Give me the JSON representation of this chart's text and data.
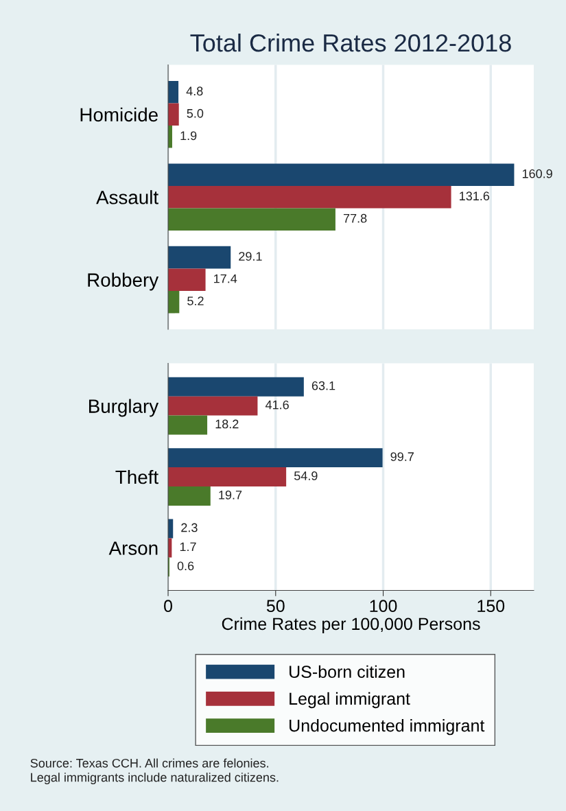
{
  "chart_data": [
    {
      "type": "bar",
      "orientation": "horizontal",
      "title": "Total Crime Rates 2012-2018",
      "categories": [
        "Homicide",
        "Assault",
        "Robbery"
      ],
      "series": [
        {
          "color": "#1a476f",
          "values": [
            4.8,
            160.9,
            29.1
          ],
          "value_labels": [
            "4.8",
            "160.9",
            "29.1"
          ]
        },
        {
          "color": "#a6313b",
          "values": [
            5.0,
            131.6,
            17.4
          ],
          "value_labels": [
            "5.0",
            "131.6",
            "17.4"
          ]
        },
        {
          "color": "#4a7a2a",
          "values": [
            1.9,
            77.8,
            5.2
          ],
          "value_labels": [
            "1.9",
            "77.8",
            "5.2"
          ]
        }
      ],
      "xlim": [
        0,
        170
      ],
      "xticks": [
        0,
        50,
        100,
        150
      ],
      "tick_labels": "y",
      "grid": "x",
      "legend": false
    },
    {
      "type": "bar",
      "orientation": "horizontal",
      "xlabel": "Crime Rates per 100,000 Persons",
      "categories": [
        "Burglary",
        "Theft",
        "Arson"
      ],
      "series": [
        {
          "name": "US-born citizen",
          "color": "#1a476f",
          "values": [
            63.1,
            99.7,
            2.3
          ],
          "value_labels": [
            "63.1",
            "99.7",
            "2.3"
          ]
        },
        {
          "name": "Legal immigrant",
          "color": "#a6313b",
          "values": [
            41.6,
            54.9,
            1.7
          ],
          "value_labels": [
            "41.6",
            "54.9",
            "1.7"
          ]
        },
        {
          "name": "Undocumented immigrant",
          "color": "#4a7a2a",
          "values": [
            18.2,
            19.7,
            0.6
          ],
          "value_labels": [
            "18.2",
            "19.7",
            "0.6"
          ]
        }
      ],
      "xlim": [
        0,
        170
      ],
      "xticks": [
        0,
        50,
        100,
        150
      ],
      "grid": "x",
      "legend": "bottom",
      "annotations": [
        "Source: Texas CCH. All crimes are felonies.\nLegal immigrants include naturalized citizens."
      ]
    }
  ]
}
